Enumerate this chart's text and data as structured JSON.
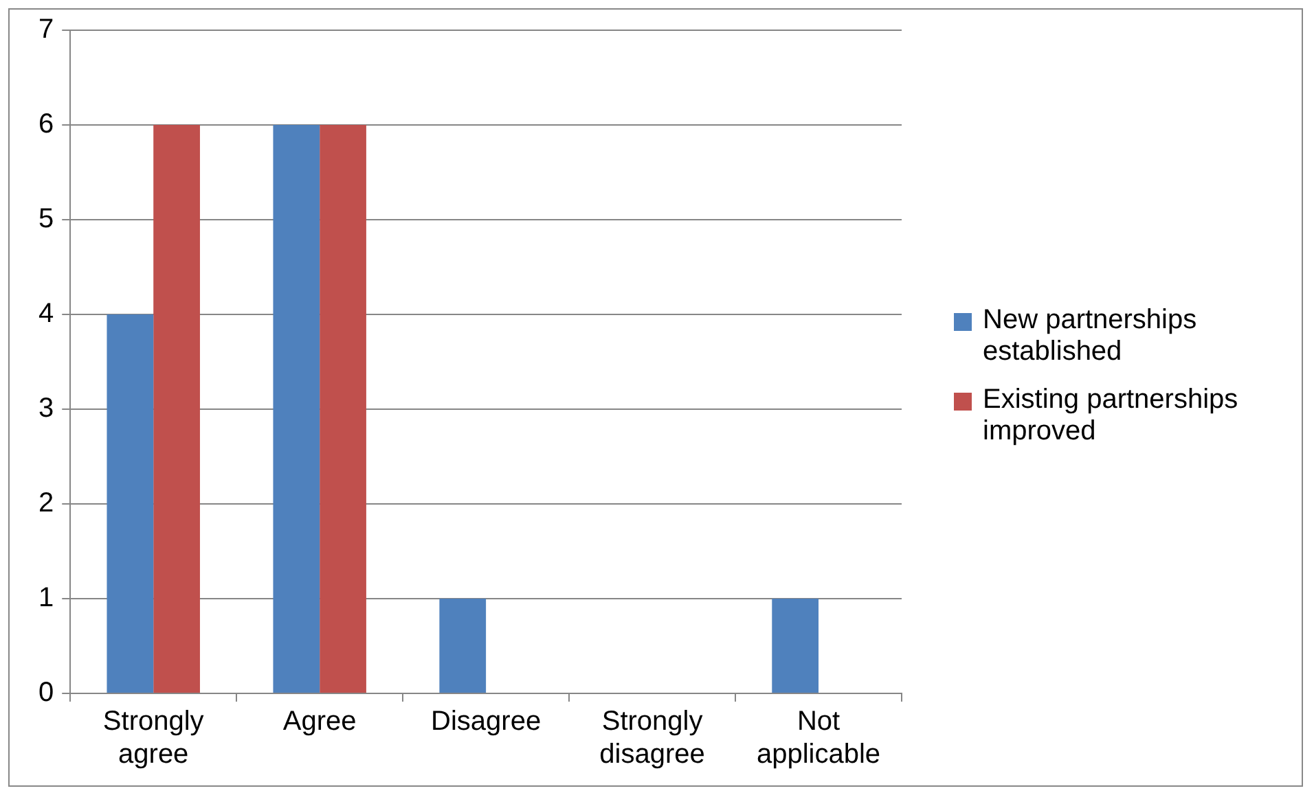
{
  "chart_data": {
    "type": "bar",
    "categories": [
      "Strongly agree",
      "Agree",
      "Disagree",
      "Strongly disagree",
      "Not applicable"
    ],
    "series": [
      {
        "name": "New partnerships established",
        "color": "#4f81bd",
        "values": [
          4,
          6,
          1,
          0,
          1
        ]
      },
      {
        "name": "Existing partnerships improved",
        "color": "#c0504d",
        "values": [
          6,
          6,
          0,
          0,
          0
        ]
      }
    ],
    "ylim": [
      0,
      7
    ],
    "yticks": [
      0,
      1,
      2,
      3,
      4,
      5,
      6,
      7
    ],
    "grid": "y",
    "legend": "right"
  }
}
